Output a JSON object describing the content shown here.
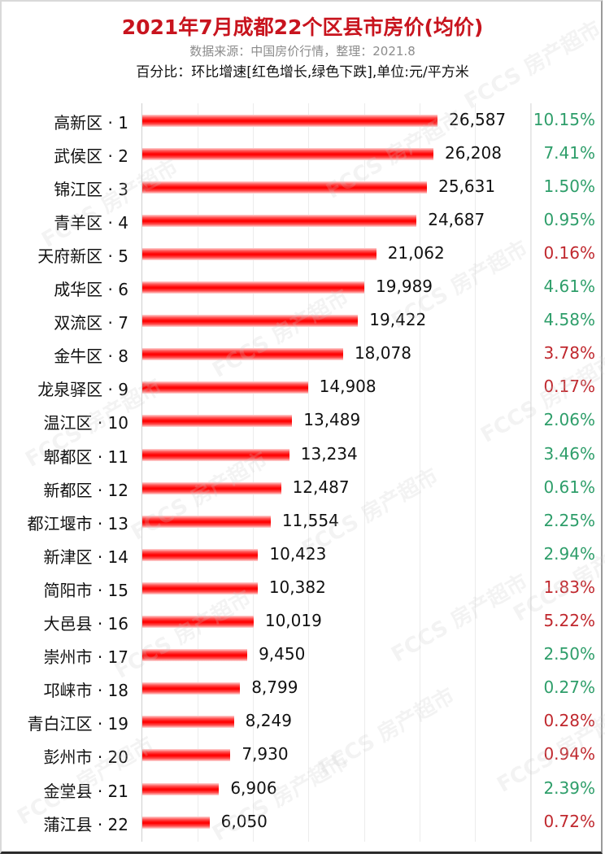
{
  "header": {
    "title": "2021年7月成都22个区县市房价(均价)",
    "subtitle": "数据来源：中国房价行情，整理：2021.8",
    "note": "百分比：环比增速[红色增长,绿色下跌],单位:元/平方米"
  },
  "colors": {
    "title": "#c8141e",
    "bar": "#ff0000",
    "increase": "#c0282e",
    "decrease": "#2e9e6a",
    "subtitle": "#8c8c8c"
  },
  "watermark": "FCCS 房产超市",
  "chart_data": {
    "type": "bar",
    "orientation": "horizontal",
    "title": "2021年7月成都22个区县市房价(均价)",
    "subtitle": "数据来源：中国房价行情，整理：2021.8",
    "annotation": "百分比：环比增速[红色增长,绿色下跌],单位:元/平方米",
    "xlabel": "",
    "ylabel": "",
    "unit": "元/平方米",
    "xlim": [
      0,
      35000
    ],
    "grid": true,
    "gridline_step": 5000,
    "legend": null,
    "categories": [
      "高新区·1",
      "武侯区·2",
      "锦江区·3",
      "青羊区·4",
      "天府新区·5",
      "成华区·6",
      "双流区·7",
      "金牛区·8",
      "龙泉驿区·9",
      "温江区·10",
      "郫都区·11",
      "新都区·12",
      "都江堰市·13",
      "新津区·14",
      "简阳市·15",
      "大邑县·16",
      "崇州市·17",
      "邛崃市·18",
      "青白江区·19",
      "彭州市·20",
      "金堂县·21",
      "蒲江县·22"
    ],
    "series": [
      {
        "name": "均价",
        "values": [
          26587,
          26208,
          25631,
          24687,
          21062,
          19989,
          19422,
          18078,
          14908,
          13489,
          13234,
          12487,
          11554,
          10423,
          10382,
          10019,
          9450,
          8799,
          8249,
          7930,
          6906,
          6050
        ]
      },
      {
        "name": "环比增速(%)",
        "values": [
          10.15,
          7.41,
          1.5,
          0.95,
          0.16,
          4.61,
          4.58,
          3.78,
          0.17,
          2.06,
          3.46,
          0.61,
          2.25,
          2.94,
          1.83,
          5.22,
          2.5,
          0.27,
          0.28,
          0.94,
          2.39,
          0.72
        ],
        "direction": [
          "down",
          "down",
          "down",
          "down",
          "up",
          "down",
          "down",
          "up",
          "up",
          "down",
          "down",
          "down",
          "down",
          "down",
          "up",
          "up",
          "down",
          "down",
          "up",
          "up",
          "down",
          "up"
        ]
      }
    ]
  },
  "rows": [
    {
      "name": "高新区",
      "rank": "1",
      "value": "26,587",
      "num": 26587,
      "pct": "10.15%",
      "dir": "down"
    },
    {
      "name": "武侯区",
      "rank": "2",
      "value": "26,208",
      "num": 26208,
      "pct": "7.41%",
      "dir": "down"
    },
    {
      "name": "锦江区",
      "rank": "3",
      "value": "25,631",
      "num": 25631,
      "pct": "1.50%",
      "dir": "down"
    },
    {
      "name": "青羊区",
      "rank": "4",
      "value": "24,687",
      "num": 24687,
      "pct": "0.95%",
      "dir": "down"
    },
    {
      "name": "天府新区",
      "rank": "5",
      "value": "21,062",
      "num": 21062,
      "pct": "0.16%",
      "dir": "up"
    },
    {
      "name": "成华区",
      "rank": "6",
      "value": "19,989",
      "num": 19989,
      "pct": "4.61%",
      "dir": "down"
    },
    {
      "name": "双流区",
      "rank": "7",
      "value": "19,422",
      "num": 19422,
      "pct": "4.58%",
      "dir": "down"
    },
    {
      "name": "金牛区",
      "rank": "8",
      "value": "18,078",
      "num": 18078,
      "pct": "3.78%",
      "dir": "up"
    },
    {
      "name": "龙泉驿区",
      "rank": "9",
      "value": "14,908",
      "num": 14908,
      "pct": "0.17%",
      "dir": "up"
    },
    {
      "name": "温江区",
      "rank": "10",
      "value": "13,489",
      "num": 13489,
      "pct": "2.06%",
      "dir": "down"
    },
    {
      "name": "郫都区",
      "rank": "11",
      "value": "13,234",
      "num": 13234,
      "pct": "3.46%",
      "dir": "down"
    },
    {
      "name": "新都区",
      "rank": "12",
      "value": "12,487",
      "num": 12487,
      "pct": "0.61%",
      "dir": "down"
    },
    {
      "name": "都江堰市",
      "rank": "13",
      "value": "11,554",
      "num": 11554,
      "pct": "2.25%",
      "dir": "down"
    },
    {
      "name": "新津区",
      "rank": "14",
      "value": "10,423",
      "num": 10423,
      "pct": "2.94%",
      "dir": "down"
    },
    {
      "name": "简阳市",
      "rank": "15",
      "value": "10,382",
      "num": 10382,
      "pct": "1.83%",
      "dir": "up"
    },
    {
      "name": "大邑县",
      "rank": "16",
      "value": "10,019",
      "num": 10019,
      "pct": "5.22%",
      "dir": "up"
    },
    {
      "name": "崇州市",
      "rank": "17",
      "value": "9,450",
      "num": 9450,
      "pct": "2.50%",
      "dir": "down"
    },
    {
      "name": "邛崃市",
      "rank": "18",
      "value": "8,799",
      "num": 8799,
      "pct": "0.27%",
      "dir": "down"
    },
    {
      "name": "青白江区",
      "rank": "19",
      "value": "8,249",
      "num": 8249,
      "pct": "0.28%",
      "dir": "up"
    },
    {
      "name": "彭州市",
      "rank": "20",
      "value": "7,930",
      "num": 7930,
      "pct": "0.94%",
      "dir": "up"
    },
    {
      "name": "金堂县",
      "rank": "21",
      "value": "6,906",
      "num": 6906,
      "pct": "2.39%",
      "dir": "down"
    },
    {
      "name": "蒲江县",
      "rank": "22",
      "value": "6,050",
      "num": 6050,
      "pct": "0.72%",
      "dir": "up"
    }
  ]
}
